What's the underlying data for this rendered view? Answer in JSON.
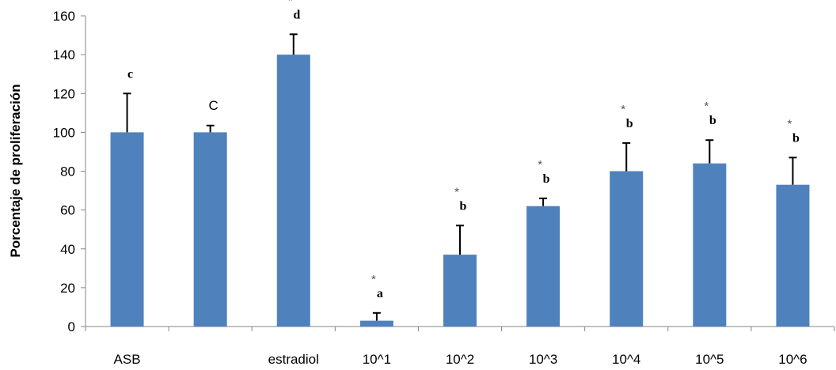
{
  "chart_data": {
    "type": "bar",
    "categories": [
      "ASB",
      "",
      "estradiol",
      "10^1",
      "10^2",
      "10^3",
      "10^4",
      "10^5",
      "10^6"
    ],
    "values": [
      100,
      100,
      140,
      3,
      37,
      62,
      80,
      84,
      73
    ],
    "errors": [
      20,
      3.5,
      10.5,
      4,
      15,
      4,
      14.5,
      12,
      14
    ],
    "annotations": [
      {
        "star": "",
        "letter": "c",
        "letter_style": "bold"
      },
      {
        "star": "",
        "letter": "C",
        "letter_style": "plain"
      },
      {
        "star": "*",
        "letter": "d",
        "letter_style": "bold"
      },
      {
        "star": "*",
        "letter": "a",
        "letter_style": "bold"
      },
      {
        "star": "*",
        "letter": "b",
        "letter_style": "bold"
      },
      {
        "star": "*",
        "letter": "b",
        "letter_style": "bold"
      },
      {
        "star": "*",
        "letter": "b",
        "letter_style": "bold"
      },
      {
        "star": "*",
        "letter": "b",
        "letter_style": "bold"
      },
      {
        "star": "*",
        "letter": "b",
        "letter_style": "bold"
      }
    ],
    "title": "",
    "xlabel": "",
    "ylabel": "Porcentaje de proliferación",
    "ylim": [
      0,
      160
    ],
    "yticks": [
      0,
      20,
      40,
      60,
      80,
      100,
      120,
      140,
      160
    ],
    "grid": false,
    "bar_color": "#4f81bd"
  }
}
